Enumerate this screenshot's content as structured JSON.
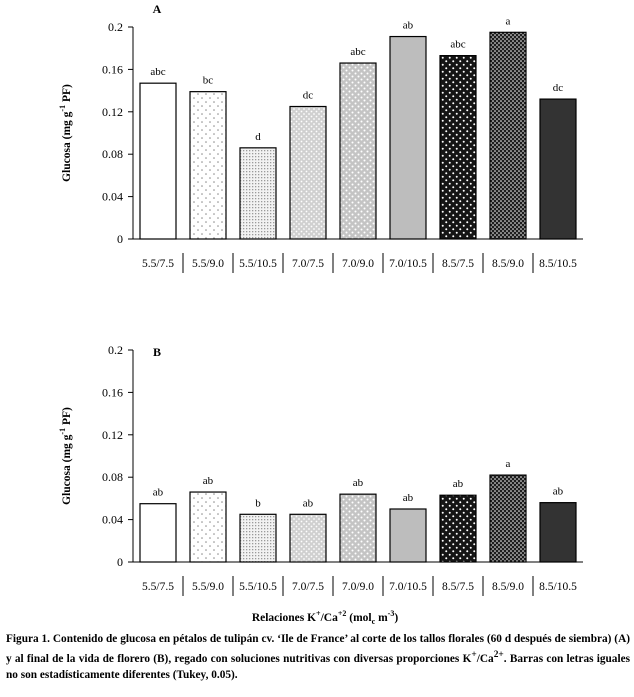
{
  "chart_data": [
    {
      "type": "bar",
      "panel_label": "A",
      "categories": [
        "5.5/7.5",
        "5.5/9.0",
        "5.5/10.5",
        "7.0/7.5",
        "7.0/9.0",
        "7.0/10.5",
        "8.5/7.5",
        "8.5/9.0",
        "8.5/10.5"
      ],
      "values": [
        0.147,
        0.139,
        0.086,
        0.125,
        0.166,
        0.191,
        0.173,
        0.195,
        0.132
      ],
      "letters": [
        "abc",
        "bc",
        "d",
        "dc",
        "abc",
        "ab",
        "abc",
        "a",
        "dc"
      ],
      "ylabel": "Glucosa (mg g-1 PF)",
      "ylim": [
        0,
        0.2
      ],
      "yticks": [
        0,
        0.04,
        0.08,
        0.12,
        0.16,
        0.2
      ],
      "ytick_labels": [
        "0",
        "0.04",
        "0.08",
        "0.12",
        "0.16",
        "0.2"
      ],
      "grid": false
    },
    {
      "type": "bar",
      "panel_label": "B",
      "categories": [
        "5.5/7.5",
        "5.5/9.0",
        "5.5/10.5",
        "7.0/7.5",
        "7.0/9.0",
        "7.0/10.5",
        "8.5/7.5",
        "8.5/9.0",
        "8.5/10.5"
      ],
      "values": [
        0.055,
        0.066,
        0.045,
        0.045,
        0.064,
        0.05,
        0.063,
        0.082,
        0.056
      ],
      "letters": [
        "ab",
        "ab",
        "b",
        "ab",
        "ab",
        "ab",
        "ab",
        "a",
        "ab"
      ],
      "ylabel": "Glucosa (mg g-1 PF)",
      "ylim": [
        0,
        0.2
      ],
      "yticks": [
        0,
        0.04,
        0.08,
        0.12,
        0.16,
        0.2
      ],
      "ytick_labels": [
        "0",
        "0.04",
        "0.08",
        "0.12",
        "0.16",
        "0.2"
      ],
      "grid": false
    }
  ],
  "ylabel_parts": {
    "main": "Glucosa (mg g",
    "sup": "-1",
    "end": " PF)"
  },
  "xlabel_parts": {
    "a": "Relaciones K",
    "sup1": "+",
    "b": "/Ca",
    "sup2": "+2",
    "c": " (mol",
    "sub": "c",
    "d": " m",
    "sup3": "-3",
    "e": ")"
  },
  "caption_parts": {
    "a": "Figura 1. Contenido de glucosa en pétalos de tulipán cv. ‘Ile de France’ al corte de los tallos florales (60 d después de siembra) (A) y al final de la vida de florero (B), regado con soluciones nutritivas con diversas proporciones K",
    "sup1": "+",
    "b": "/Ca",
    "sup2": "2+",
    "c": ". Barras con letras iguales no son estadísticamente diferentes (Tukey, 0.05)."
  },
  "bar_styles": [
    "white",
    "sparse-dots",
    "fine-grid",
    "medium-dots",
    "light-dots",
    "gray",
    "dark-dots",
    "dense-dark-dots",
    "charcoal"
  ]
}
